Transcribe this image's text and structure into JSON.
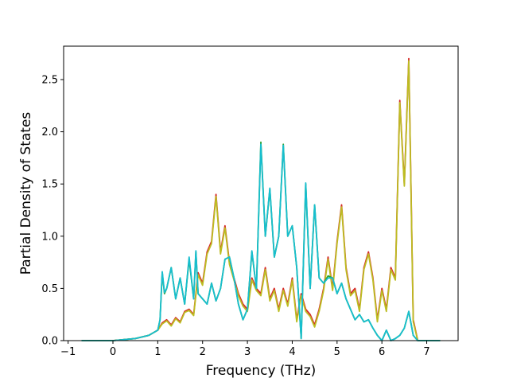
{
  "chart_data": {
    "type": "line",
    "title": "",
    "xlabel": "Frequency (THz)",
    "ylabel": "Partial Density of States",
    "xlim": [
      -1.1,
      7.7
    ],
    "ylim": [
      0,
      2.82
    ],
    "xticks": [
      -1,
      0,
      1,
      2,
      3,
      4,
      5,
      6,
      7
    ],
    "yticks": [
      0.0,
      0.5,
      1.0,
      1.5,
      2.0,
      2.5
    ],
    "xtick_labels": [
      "−1",
      "0",
      "1",
      "2",
      "3",
      "4",
      "5",
      "6",
      "7"
    ],
    "ytick_labels": [
      "0.0",
      "0.5",
      "1.0",
      "1.5",
      "2.0",
      "2.5"
    ],
    "grid": false,
    "legend": "none",
    "series": [
      {
        "color": "#d62728",
        "x": [
          -0.7,
          0.0,
          0.5,
          0.8,
          1.0,
          1.1,
          1.2,
          1.3,
          1.4,
          1.5,
          1.6,
          1.7,
          1.8,
          1.9,
          2.0,
          2.1,
          2.2,
          2.3,
          2.4,
          2.5,
          2.6,
          2.7,
          2.8,
          2.9,
          3.0,
          3.1,
          3.2,
          3.3,
          3.4,
          3.5,
          3.6,
          3.7,
          3.8,
          3.9,
          4.0,
          4.1,
          4.2,
          4.3,
          4.4,
          4.5,
          4.6,
          4.7,
          4.8,
          4.9,
          5.0,
          5.1,
          5.2,
          5.3,
          5.4,
          5.5,
          5.6,
          5.7,
          5.8,
          5.9,
          6.0,
          6.1,
          6.2,
          6.3,
          6.4,
          6.5,
          6.6,
          6.7,
          6.8,
          7.3
        ],
        "y": [
          0.0,
          0.0,
          0.02,
          0.05,
          0.1,
          0.17,
          0.2,
          0.15,
          0.22,
          0.18,
          0.28,
          0.3,
          0.25,
          0.65,
          0.55,
          0.85,
          0.95,
          1.4,
          0.85,
          1.1,
          0.75,
          0.6,
          0.45,
          0.35,
          0.3,
          0.6,
          0.5,
          0.45,
          0.7,
          0.4,
          0.5,
          0.3,
          0.5,
          0.35,
          0.6,
          0.2,
          0.45,
          0.3,
          0.25,
          0.15,
          0.3,
          0.5,
          0.8,
          0.5,
          0.95,
          1.3,
          0.7,
          0.45,
          0.5,
          0.3,
          0.7,
          0.85,
          0.6,
          0.2,
          0.5,
          0.3,
          0.7,
          0.6,
          2.3,
          1.5,
          2.7,
          0.2,
          0.0,
          0.0
        ]
      },
      {
        "color": "#bcbd22",
        "x": [
          -0.7,
          0.0,
          0.5,
          0.8,
          1.0,
          1.1,
          1.2,
          1.3,
          1.4,
          1.5,
          1.6,
          1.7,
          1.8,
          1.9,
          2.0,
          2.1,
          2.2,
          2.3,
          2.4,
          2.5,
          2.6,
          2.7,
          2.8,
          2.9,
          3.0,
          3.1,
          3.2,
          3.3,
          3.4,
          3.5,
          3.6,
          3.7,
          3.8,
          3.9,
          4.0,
          4.1,
          4.2,
          4.3,
          4.4,
          4.5,
          4.6,
          4.7,
          4.8,
          4.9,
          5.0,
          5.1,
          5.2,
          5.3,
          5.4,
          5.5,
          5.6,
          5.7,
          5.8,
          5.9,
          6.0,
          6.1,
          6.2,
          6.3,
          6.4,
          6.5,
          6.6,
          6.7,
          6.8,
          7.3
        ],
        "y": [
          0.0,
          0.0,
          0.02,
          0.05,
          0.1,
          0.16,
          0.19,
          0.14,
          0.21,
          0.17,
          0.27,
          0.29,
          0.24,
          0.63,
          0.53,
          0.83,
          0.93,
          1.38,
          0.83,
          1.08,
          0.73,
          0.58,
          0.43,
          0.33,
          0.28,
          0.58,
          0.48,
          0.43,
          0.68,
          0.38,
          0.48,
          0.28,
          0.48,
          0.33,
          0.58,
          0.18,
          0.43,
          0.28,
          0.23,
          0.13,
          0.28,
          0.48,
          0.78,
          0.48,
          0.93,
          1.28,
          0.68,
          0.43,
          0.48,
          0.28,
          0.68,
          0.83,
          0.58,
          0.18,
          0.48,
          0.28,
          0.68,
          0.58,
          2.28,
          1.48,
          2.68,
          0.18,
          0.0,
          0.0
        ]
      },
      {
        "color": "#2ca02c",
        "x": [
          -0.7,
          0.0,
          0.5,
          0.8,
          1.0,
          1.05,
          1.1,
          1.15,
          1.2,
          1.3,
          1.4,
          1.5,
          1.6,
          1.7,
          1.8,
          1.85,
          1.9,
          2.0,
          2.1,
          2.2,
          2.3,
          2.4,
          2.5,
          2.6,
          2.7,
          2.8,
          2.9,
          3.0,
          3.1,
          3.2,
          3.3,
          3.4,
          3.5,
          3.6,
          3.7,
          3.8,
          3.9,
          4.0,
          4.1,
          4.2,
          4.3,
          4.4,
          4.5,
          4.6,
          4.7,
          4.8,
          4.9,
          5.0,
          5.1,
          5.2,
          5.3,
          5.4,
          5.5,
          5.6,
          5.7,
          5.8,
          5.9,
          6.0,
          6.1,
          6.2,
          6.3,
          6.4,
          6.5,
          6.6,
          6.7,
          6.8,
          7.3
        ],
        "y": [
          0.0,
          0.0,
          0.02,
          0.05,
          0.1,
          0.2,
          0.65,
          0.45,
          0.5,
          0.7,
          0.4,
          0.6,
          0.35,
          0.78,
          0.4,
          0.85,
          0.45,
          0.4,
          0.35,
          0.55,
          0.38,
          0.5,
          0.78,
          0.8,
          0.6,
          0.35,
          0.2,
          0.3,
          0.85,
          0.5,
          1.9,
          1.0,
          1.45,
          0.8,
          1.0,
          1.88,
          1.0,
          1.1,
          0.7,
          0.02,
          1.5,
          0.5,
          1.3,
          0.6,
          0.55,
          0.62,
          0.6,
          0.45,
          0.55,
          0.4,
          0.3,
          0.2,
          0.25,
          0.18,
          0.2,
          0.12,
          0.05,
          0.0,
          0.1,
          0.0,
          0.02,
          0.05,
          0.12,
          0.28,
          0.05,
          0.0,
          0.0
        ]
      },
      {
        "color": "#17becf",
        "x": [
          -0.7,
          0.0,
          0.5,
          0.8,
          1.0,
          1.05,
          1.1,
          1.15,
          1.2,
          1.3,
          1.4,
          1.5,
          1.6,
          1.7,
          1.8,
          1.85,
          1.9,
          2.0,
          2.1,
          2.2,
          2.3,
          2.4,
          2.5,
          2.6,
          2.7,
          2.8,
          2.9,
          3.0,
          3.1,
          3.2,
          3.3,
          3.4,
          3.5,
          3.6,
          3.7,
          3.8,
          3.9,
          4.0,
          4.1,
          4.2,
          4.3,
          4.4,
          4.5,
          4.6,
          4.7,
          4.8,
          4.9,
          5.0,
          5.1,
          5.2,
          5.3,
          5.4,
          5.5,
          5.6,
          5.7,
          5.8,
          5.9,
          6.0,
          6.1,
          6.2,
          6.3,
          6.4,
          6.5,
          6.6,
          6.7,
          6.8,
          7.3
        ],
        "y": [
          0.0,
          0.0,
          0.02,
          0.05,
          0.1,
          0.2,
          0.66,
          0.46,
          0.5,
          0.7,
          0.4,
          0.6,
          0.35,
          0.8,
          0.4,
          0.86,
          0.45,
          0.4,
          0.35,
          0.55,
          0.38,
          0.5,
          0.78,
          0.8,
          0.6,
          0.35,
          0.2,
          0.3,
          0.86,
          0.5,
          1.88,
          1.0,
          1.46,
          0.8,
          1.0,
          1.87,
          1.0,
          1.1,
          0.7,
          0.02,
          1.51,
          0.5,
          1.3,
          0.6,
          0.55,
          0.6,
          0.6,
          0.45,
          0.55,
          0.4,
          0.3,
          0.2,
          0.25,
          0.18,
          0.2,
          0.12,
          0.05,
          0.0,
          0.1,
          0.0,
          0.02,
          0.05,
          0.12,
          0.28,
          0.05,
          0.0,
          0.0
        ]
      }
    ]
  }
}
